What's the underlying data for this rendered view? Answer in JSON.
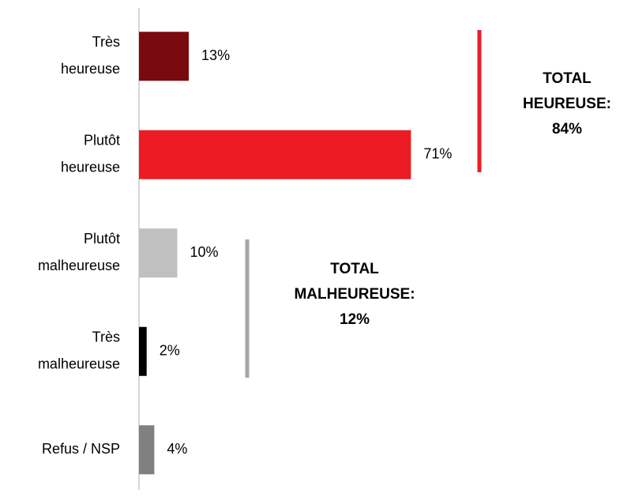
{
  "chart_data": {
    "type": "barh",
    "categories": [
      [
        "Très",
        "heureuse"
      ],
      [
        "Plutôt",
        "heureuse"
      ],
      [
        "Plutôt",
        "malheureuse"
      ],
      [
        "Très",
        "malheureuse"
      ],
      [
        "Refus / NSP"
      ]
    ],
    "values": [
      13,
      71,
      10,
      2,
      4
    ],
    "value_labels": [
      "13%",
      "71%",
      "10%",
      "2%",
      "4%"
    ],
    "colors": [
      "#7b0a0f",
      "#ed1c24",
      "#c0c0c0",
      "#000000",
      "#808080"
    ],
    "xlim": [
      0,
      100
    ],
    "annotations": [
      {
        "lines": [
          "TOTAL",
          "HEUREUSE:",
          "84%"
        ],
        "color": "#ed1c24"
      },
      {
        "lines": [
          "TOTAL",
          "MALHEUREUSE:",
          "12%"
        ],
        "color": "#a6a6a6"
      }
    ]
  }
}
